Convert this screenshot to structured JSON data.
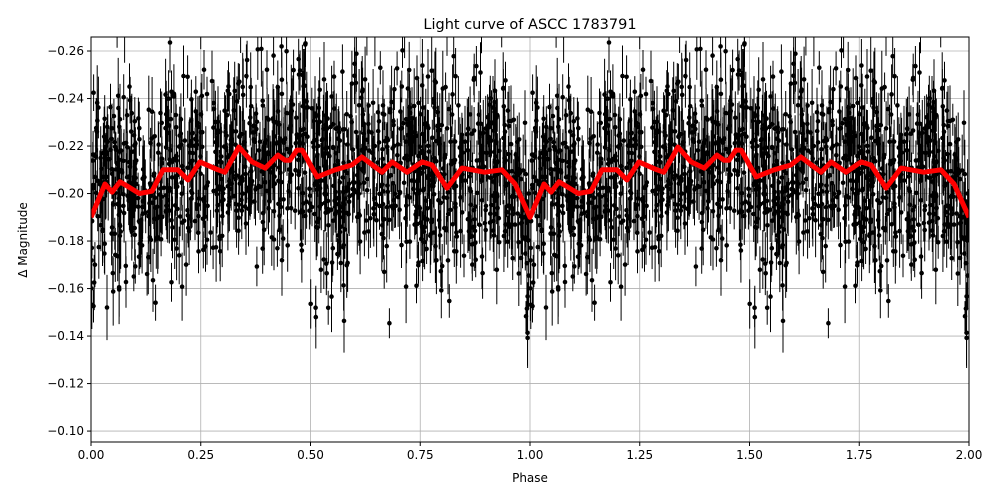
{
  "chart_data": {
    "type": "line",
    "title": "Light curve of ASCC 1783791",
    "xlabel": "Phase",
    "ylabel": "Δ Magnitude",
    "xlim": [
      0,
      2
    ],
    "ylim": [
      -0.0954,
      -0.2659
    ],
    "y_inverted": true,
    "grid": true,
    "xticks": [
      "0.00",
      "0.25",
      "0.50",
      "0.75",
      "1.00",
      "1.25",
      "1.50",
      "1.75",
      "2.00"
    ],
    "xtick_values": [
      0,
      0.25,
      0.5,
      0.75,
      1,
      1.25,
      1.5,
      1.75,
      2
    ],
    "yticks": [
      "−0.26",
      "−0.24",
      "−0.22",
      "−0.20",
      "−0.18",
      "−0.16",
      "−0.14",
      "−0.12",
      "−0.10"
    ],
    "ytick_values": [
      -0.26,
      -0.24,
      -0.22,
      -0.2,
      -0.18,
      -0.16,
      -0.14,
      -0.12,
      -0.1
    ],
    "series": [
      {
        "style": "errorbar-points",
        "color": "#000000"
      },
      {
        "style": "smoothed-line",
        "color": "#ff0000",
        "x": [
          0,
          0.032,
          0.048,
          0.066,
          0.11,
          0.139,
          0.164,
          0.198,
          0.221,
          0.248,
          0.289,
          0.305,
          0.337,
          0.367,
          0.397,
          0.426,
          0.442,
          0.453,
          0.469,
          0.481,
          0.515,
          0.556,
          0.594,
          0.617,
          0.663,
          0.686,
          0.72,
          0.754,
          0.777,
          0.811,
          0.845,
          0.897,
          0.936,
          0.966,
          1.0
        ],
        "y": [
          -0.19,
          -0.204,
          -0.2006,
          -0.205,
          -0.2,
          -0.201,
          -0.21,
          -0.21,
          -0.2057,
          -0.2133,
          -0.21,
          -0.209,
          -0.2196,
          -0.2133,
          -0.2107,
          -0.2162,
          -0.214,
          -0.214,
          -0.2183,
          -0.2183,
          -0.207,
          -0.21,
          -0.212,
          -0.2154,
          -0.209,
          -0.2133,
          -0.209,
          -0.2133,
          -0.212,
          -0.2023,
          -0.2107,
          -0.209,
          -0.21,
          -0.204,
          -0.19
        ],
        "period": 1
      }
    ]
  }
}
